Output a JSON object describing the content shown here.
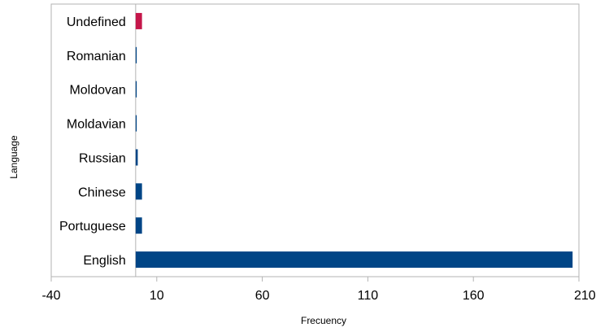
{
  "chart_data": {
    "type": "bar",
    "orientation": "horizontal",
    "xlabel": "Frecuency",
    "ylabel": "Language",
    "xlim": [
      -40,
      210
    ],
    "x_ticks": [
      -40,
      10,
      60,
      110,
      160,
      210
    ],
    "x_tick_labels": [
      "-40",
      "10",
      "60",
      "110",
      "160",
      "210"
    ],
    "categories": [
      "English",
      "Portuguese",
      "Chinese",
      "Russian",
      "Moldavian",
      "Moldovan",
      "Romanian",
      "Undefined"
    ],
    "values": [
      207,
      3,
      3,
      1,
      0.5,
      0.5,
      0.5,
      3
    ],
    "bar_colors": [
      "#004586",
      "#004586",
      "#004586",
      "#004586",
      "#004586",
      "#004586",
      "#004586",
      "#c5164a"
    ],
    "grid": false,
    "legend": "none",
    "frame_color": "#b3b3b3"
  }
}
